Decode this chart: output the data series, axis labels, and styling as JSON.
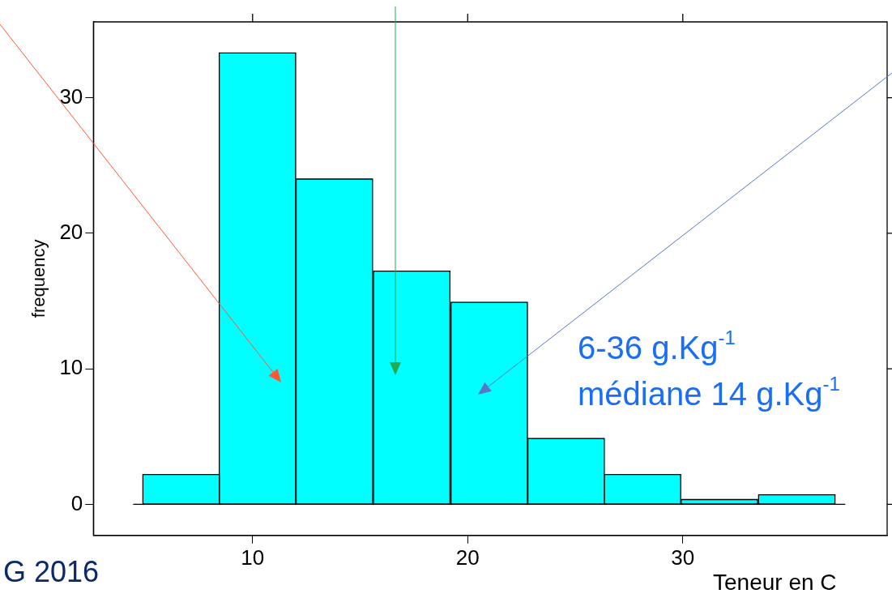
{
  "chart_data": {
    "type": "histogram",
    "xlabel": "Teneur en C",
    "ylabel": "frequency",
    "bins": [
      4.9,
      8.45,
      12.0,
      15.6,
      19.2,
      22.8,
      26.35,
      29.9,
      33.5,
      37.1
    ],
    "values": [
      2.2,
      33.3,
      24.0,
      17.2,
      14.9,
      4.85,
      2.2,
      0.35,
      0.7
    ],
    "color": "#00ffff",
    "xlim": [
      2.6,
      39.5
    ],
    "xticks": [
      10,
      20,
      30
    ],
    "ylim": [
      -2.3,
      35.6
    ],
    "yticks": [
      0,
      10,
      20,
      30
    ],
    "grid": false,
    "legend": false,
    "ref_lines": [
      {
        "axis": "y",
        "value": 0,
        "color": "#000000"
      }
    ],
    "annotations": [
      "6-36 g.Kg$^{-1}$",
      "médiane 14 g.Kg$^{-1}$",
      "G 2016"
    ]
  }
}
